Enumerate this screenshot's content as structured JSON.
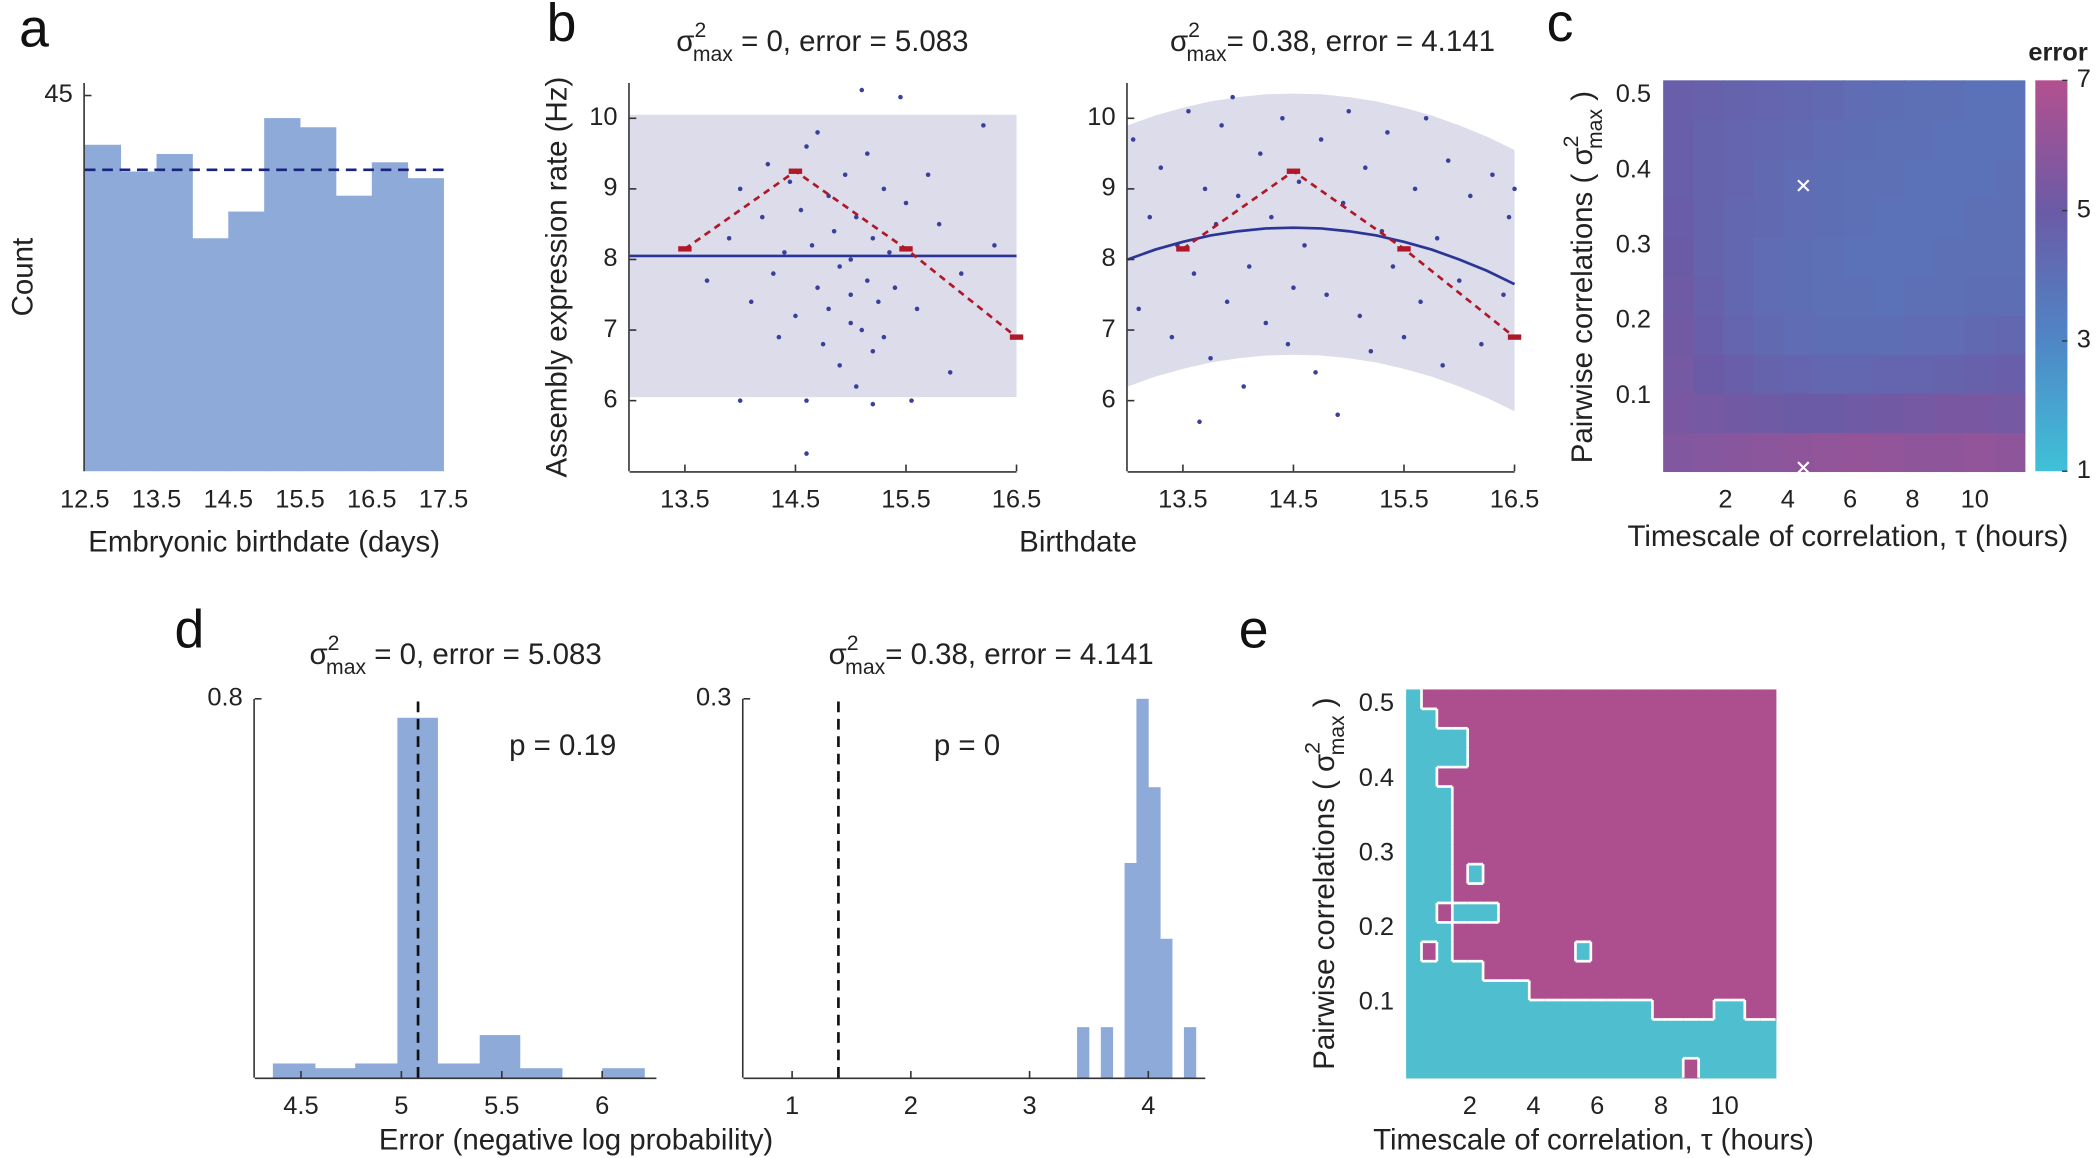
{
  "chart_data": [
    {
      "type": "histogram",
      "panel": "a",
      "ylabel": "Count",
      "xlabel": "Embryonic birthdate (days)",
      "bins": [
        12.5,
        13,
        13.5,
        14,
        14.5,
        15,
        15.5,
        16,
        16.5,
        17,
        17.5
      ],
      "values": [
        39.1,
        35.9,
        38.0,
        27.9,
        31.1,
        42.3,
        41.2,
        33.0,
        37.0,
        35.1
      ],
      "color": "#8eaad8",
      "mean_line": 36.1,
      "line_color": "#1a237e",
      "xlim": [
        12.5,
        17.5
      ],
      "ylim": [
        0,
        46.5
      ],
      "xticks": [
        12.5,
        13.5,
        14.5,
        15.5,
        16.5,
        17.5
      ],
      "yticks": [
        45
      ]
    },
    {
      "type": "scatter",
      "panel": "b",
      "title": [
        "σ",
        "2",
        "max",
        " = 0, error = 5.083"
      ],
      "ylabel": "Assembly expression rate (Hz)",
      "xlabel": "Birthdate",
      "x": [
        13.7,
        13.9,
        14.0,
        14.1,
        14.2,
        14.25,
        14.3,
        14.35,
        14.4,
        14.45,
        14.5,
        14.55,
        14.6,
        14.6,
        14.65,
        14.7,
        14.7,
        14.75,
        14.8,
        14.8,
        14.85,
        14.9,
        14.9,
        14.95,
        15.0,
        15.0,
        15.0,
        15.05,
        15.05,
        15.1,
        15.1,
        15.15,
        15.15,
        15.2,
        15.2,
        15.25,
        15.3,
        15.3,
        15.35,
        15.4,
        15.45,
        15.5,
        15.55,
        15.6,
        15.7,
        15.8,
        15.9,
        16.0,
        16.2,
        16.3,
        14.6,
        15.2,
        14.0
      ],
      "y": [
        7.7,
        8.3,
        9.0,
        7.4,
        8.6,
        9.35,
        7.8,
        6.9,
        8.1,
        9.1,
        7.2,
        8.7,
        9.6,
        6.0,
        8.2,
        7.6,
        9.8,
        6.8,
        8.9,
        7.3,
        8.4,
        6.5,
        7.9,
        9.2,
        7.1,
        8.0,
        7.5,
        6.2,
        8.6,
        10.4,
        7.0,
        9.5,
        7.7,
        6.7,
        8.3,
        7.4,
        9.0,
        6.9,
        8.1,
        7.6,
        10.3,
        8.8,
        6.0,
        7.3,
        9.2,
        8.5,
        6.4,
        7.8,
        9.9,
        8.2,
        5.25,
        5.95,
        6.0
      ],
      "point_color": "#3a3f9a",
      "fit": {
        "x": [
          13,
          16.5
        ],
        "y": [
          8.05,
          8.05
        ],
        "upper": [
          10.05,
          10.05
        ],
        "lower": [
          6.05,
          6.05
        ],
        "color": "#2b3595",
        "band_color": "#dcdcea"
      },
      "reference": {
        "x": [
          13.5,
          14.5,
          15.5,
          16.5
        ],
        "y": [
          8.15,
          9.25,
          8.15,
          6.9
        ],
        "color": "#b0182a"
      },
      "xlim": [
        13,
        16.5
      ],
      "ylim": [
        5,
        10.5
      ],
      "xticks": [
        13.5,
        14.5,
        15.5,
        16.5
      ],
      "yticks": [
        6,
        7,
        8,
        9,
        10
      ]
    },
    {
      "type": "scatter",
      "title": [
        "σ",
        "2",
        "max",
        "= 0.38, error = 4.141"
      ],
      "x": [
        13.05,
        13.1,
        13.2,
        13.3,
        13.4,
        13.45,
        13.55,
        13.6,
        13.65,
        13.7,
        13.75,
        13.8,
        13.85,
        13.9,
        13.95,
        14.0,
        14.05,
        14.1,
        14.2,
        14.25,
        14.3,
        14.4,
        14.45,
        14.5,
        14.55,
        14.6,
        14.7,
        14.75,
        14.8,
        14.9,
        14.95,
        15.0,
        15.1,
        15.15,
        15.2,
        15.3,
        15.35,
        15.4,
        15.5,
        15.6,
        15.65,
        15.7,
        15.8,
        15.85,
        15.9,
        16.0,
        16.1,
        16.2,
        16.3,
        16.4,
        16.45,
        16.5
      ],
      "y": [
        9.7,
        7.3,
        8.6,
        9.3,
        6.9,
        8.2,
        10.1,
        7.8,
        5.7,
        9.0,
        6.6,
        8.5,
        9.9,
        7.4,
        10.3,
        8.9,
        6.2,
        7.9,
        9.5,
        7.1,
        8.6,
        10.0,
        6.8,
        7.6,
        9.1,
        8.2,
        6.4,
        9.7,
        7.5,
        5.8,
        8.8,
        10.1,
        7.2,
        9.3,
        6.7,
        8.4,
        9.8,
        7.9,
        6.9,
        9.0,
        7.4,
        10.0,
        8.3,
        6.5,
        9.4,
        7.7,
        8.9,
        6.8,
        9.2,
        7.5,
        8.6,
        9.0
      ],
      "point_color": "#3a3f9a",
      "fit": {
        "x": [
          13,
          13.25,
          13.5,
          13.75,
          14,
          14.25,
          14.5,
          14.75,
          15,
          15.25,
          15.5,
          15.75,
          16,
          16.25,
          16.5
        ],
        "y": [
          8.0,
          8.14,
          8.25,
          8.34,
          8.4,
          8.44,
          8.45,
          8.44,
          8.4,
          8.34,
          8.25,
          8.14,
          8.0,
          7.84,
          7.65
        ],
        "upper": [
          9.9,
          10.04,
          10.15,
          10.24,
          10.3,
          10.34,
          10.35,
          10.34,
          10.3,
          10.24,
          10.15,
          10.04,
          9.9,
          9.74,
          9.55
        ],
        "lower": [
          6.2,
          6.34,
          6.45,
          6.54,
          6.6,
          6.64,
          6.65,
          6.64,
          6.6,
          6.54,
          6.45,
          6.34,
          6.2,
          6.04,
          5.85
        ],
        "color": "#2b3595",
        "band_color": "#dcdcea"
      },
      "reference": {
        "x": [
          13.5,
          14.5,
          15.5,
          16.5
        ],
        "y": [
          8.15,
          9.25,
          8.15,
          6.9
        ],
        "color": "#b0182a"
      },
      "xlim": [
        13,
        16.5
      ],
      "ylim": [
        5,
        10.5
      ],
      "xticks": [
        13.5,
        14.5,
        15.5,
        16.5
      ],
      "yticks": [
        6,
        7,
        8,
        9,
        10
      ]
    },
    {
      "type": "heatmap",
      "panel": "c",
      "ylabel": [
        "Pairwise correlations ( ",
        "σ",
        "2",
        "max",
        " )"
      ],
      "xlabel": "Timescale of correlation, τ  (hours)",
      "clabel": "error",
      "z": [
        [
          5.6,
          5.7,
          5.8,
          5.9,
          6.0,
          6.1,
          6.2,
          6.1,
          6.0,
          6.0,
          6.1,
          6.0
        ],
        [
          5.4,
          5.3,
          5.2,
          5.1,
          5.0,
          5.0,
          5.1,
          5.2,
          5.3,
          5.4,
          5.4,
          5.3
        ],
        [
          5.3,
          5.0,
          4.8,
          4.6,
          4.5,
          4.4,
          4.4,
          4.5,
          4.5,
          4.6,
          4.7,
          4.8
        ],
        [
          5.2,
          4.8,
          4.5,
          4.3,
          4.2,
          4.1,
          4.1,
          4.1,
          4.2,
          4.2,
          4.3,
          4.4
        ],
        [
          5.1,
          4.7,
          4.4,
          4.2,
          4.1,
          4.0,
          4.0,
          3.9,
          4.0,
          4.0,
          4.1,
          4.1
        ],
        [
          5.0,
          4.6,
          4.4,
          4.2,
          4.1,
          4.0,
          3.9,
          3.9,
          3.9,
          4.0,
          4.0,
          4.0
        ],
        [
          4.9,
          4.6,
          4.4,
          4.3,
          4.2,
          4.1,
          4.0,
          3.9,
          3.9,
          3.9,
          4.0,
          4.0
        ],
        [
          4.8,
          4.6,
          4.5,
          4.3,
          4.2,
          4.1,
          4.0,
          4.0,
          3.9,
          3.9,
          3.9,
          4.0
        ],
        [
          4.8,
          4.6,
          4.5,
          4.4,
          4.3,
          4.2,
          4.1,
          4.0,
          4.0,
          3.9,
          3.9,
          3.9
        ],
        [
          4.8,
          4.7,
          4.6,
          4.5,
          4.4,
          4.3,
          4.2,
          4.1,
          4.0,
          4.0,
          3.9,
          3.9
        ]
      ],
      "colormap": [
        "#3fc1d8",
        "#4f86c6",
        "#6b5aa6",
        "#b3508f"
      ],
      "clim": [
        1,
        7
      ],
      "cticks": [
        1,
        3,
        5,
        7
      ],
      "markers": {
        "x": [
          4.5,
          4.5
        ],
        "y": [
          0.38,
          0.005
        ],
        "color": "#ffffff"
      },
      "xlim": [
        0,
        11.6
      ],
      "ylim": [
        0,
        0.52
      ],
      "xticks": [
        2,
        4,
        6,
        8,
        10
      ],
      "yticks": [
        0.1,
        0.2,
        0.3,
        0.4,
        0.5
      ]
    },
    {
      "type": "histogram",
      "panel": "d",
      "title": [
        "σ",
        "2",
        "max",
        " = 0, error = 5.083"
      ],
      "xlabel": "Error (negative log probability)",
      "annotation": "p = 0.19",
      "bins": [
        4.36,
        4.57,
        4.77,
        4.98,
        5.18,
        5.39,
        5.59,
        5.8,
        6.0,
        6.21
      ],
      "values": [
        0.03,
        0.02,
        0.03,
        0.76,
        0.03,
        0.09,
        0.02,
        0,
        0.02
      ],
      "color": "#8eaad8",
      "vline": 5.083,
      "line_color": "#111111",
      "xlim": [
        4.27,
        6.27
      ],
      "ylim": [
        0,
        0.8
      ],
      "xticks": [
        4.5,
        5,
        5.5,
        6
      ],
      "yticks": [
        0.8
      ]
    },
    {
      "type": "histogram",
      "title": [
        "σ",
        "2",
        "max",
        "= 0.38, error = 4.141"
      ],
      "annotation": "p = 0",
      "bins": [
        3.4,
        3.5,
        3.6,
        3.7,
        3.8,
        3.9,
        4.0,
        4.1,
        4.2,
        4.3,
        4.4
      ],
      "values": [
        0.04,
        0,
        0.04,
        0,
        0.17,
        0.3,
        0.23,
        0.11,
        0,
        0.04
      ],
      "color": "#8eaad8",
      "vline": 1.39,
      "line_color": "#111111",
      "xlim": [
        0.59,
        4.48
      ],
      "ylim": [
        0,
        0.3
      ],
      "xticks": [
        1,
        2,
        3,
        4
      ],
      "yticks": [
        0.3
      ]
    },
    {
      "type": "heatmap",
      "panel": "e",
      "ylabel": [
        "Pairwise correlations ( ",
        "σ",
        "2",
        "max",
        " )"
      ],
      "xlabel": "Timescale of correlation, τ  (hours)",
      "z": [
        [
          0,
          0,
          0,
          0,
          0,
          0,
          0,
          0,
          0,
          0,
          0,
          0,
          0,
          0,
          0,
          0,
          0,
          0,
          1,
          0,
          0,
          0,
          0,
          0
        ],
        [
          0,
          0,
          0,
          0,
          0,
          0,
          0,
          0,
          0,
          0,
          0,
          0,
          0,
          0,
          0,
          0,
          0,
          0,
          0,
          0,
          0,
          0,
          0,
          0
        ],
        [
          0,
          0,
          0,
          0,
          0,
          0,
          0,
          0,
          0,
          0,
          0,
          0,
          0,
          0,
          0,
          0,
          0,
          0,
          0,
          0,
          0,
          0,
          0,
          0
        ],
        [
          0,
          0,
          0,
          0,
          0,
          0,
          0,
          0,
          0,
          0,
          0,
          0,
          0,
          0,
          0,
          0,
          1,
          1,
          1,
          1,
          0,
          0,
          1,
          1
        ],
        [
          0,
          0,
          0,
          0,
          0,
          0,
          0,
          0,
          1,
          1,
          1,
          1,
          1,
          1,
          1,
          1,
          1,
          1,
          1,
          1,
          1,
          1,
          1,
          1
        ],
        [
          0,
          0,
          0,
          0,
          0,
          1,
          1,
          1,
          1,
          1,
          1,
          1,
          1,
          1,
          1,
          1,
          1,
          1,
          1,
          1,
          1,
          1,
          1,
          1
        ],
        [
          0,
          1,
          0,
          1,
          1,
          1,
          1,
          1,
          1,
          1,
          1,
          0,
          1,
          1,
          1,
          1,
          1,
          1,
          1,
          1,
          1,
          1,
          1,
          1
        ],
        [
          0,
          0,
          0,
          1,
          1,
          1,
          1,
          1,
          1,
          1,
          1,
          1,
          1,
          1,
          1,
          1,
          1,
          1,
          1,
          1,
          1,
          1,
          1,
          1
        ],
        [
          0,
          0,
          1,
          0,
          0,
          0,
          1,
          1,
          1,
          1,
          1,
          1,
          1,
          1,
          1,
          1,
          1,
          1,
          1,
          1,
          1,
          1,
          1,
          1
        ],
        [
          0,
          0,
          0,
          1,
          1,
          1,
          1,
          1,
          1,
          1,
          1,
          1,
          1,
          1,
          1,
          1,
          1,
          1,
          1,
          1,
          1,
          1,
          1,
          1
        ],
        [
          0,
          0,
          0,
          1,
          0,
          1,
          1,
          1,
          1,
          1,
          1,
          1,
          1,
          1,
          1,
          1,
          1,
          1,
          1,
          1,
          1,
          1,
          1,
          1
        ],
        [
          0,
          0,
          0,
          1,
          1,
          1,
          1,
          1,
          1,
          1,
          1,
          1,
          1,
          1,
          1,
          1,
          1,
          1,
          1,
          1,
          1,
          1,
          1,
          1
        ],
        [
          0,
          0,
          0,
          1,
          1,
          1,
          1,
          1,
          1,
          1,
          1,
          1,
          1,
          1,
          1,
          1,
          1,
          1,
          1,
          1,
          1,
          1,
          1,
          1
        ],
        [
          0,
          0,
          0,
          1,
          1,
          1,
          1,
          1,
          1,
          1,
          1,
          1,
          1,
          1,
          1,
          1,
          1,
          1,
          1,
          1,
          1,
          1,
          1,
          1
        ],
        [
          0,
          0,
          0,
          1,
          1,
          1,
          1,
          1,
          1,
          1,
          1,
          1,
          1,
          1,
          1,
          1,
          1,
          1,
          1,
          1,
          1,
          1,
          1,
          1
        ],
        [
          0,
          0,
          1,
          1,
          1,
          1,
          1,
          1,
          1,
          1,
          1,
          1,
          1,
          1,
          1,
          1,
          1,
          1,
          1,
          1,
          1,
          1,
          1,
          1
        ],
        [
          0,
          0,
          0,
          0,
          1,
          1,
          1,
          1,
          1,
          1,
          1,
          1,
          1,
          1,
          1,
          1,
          1,
          1,
          1,
          1,
          1,
          1,
          1,
          1
        ],
        [
          0,
          0,
          0,
          0,
          1,
          1,
          1,
          1,
          1,
          1,
          1,
          1,
          1,
          1,
          1,
          1,
          1,
          1,
          1,
          1,
          1,
          1,
          1,
          1
        ],
        [
          0,
          0,
          1,
          1,
          1,
          1,
          1,
          1,
          1,
          1,
          1,
          1,
          1,
          1,
          1,
          1,
          1,
          1,
          1,
          1,
          1,
          1,
          1,
          1
        ],
        [
          0,
          1,
          1,
          1,
          1,
          1,
          1,
          1,
          1,
          1,
          1,
          1,
          1,
          1,
          1,
          1,
          1,
          1,
          1,
          1,
          1,
          1,
          1,
          1
        ]
      ],
      "colors": [
        "#4fbfcf",
        "#ad4e8f"
      ],
      "boundary_color": "#ffffff",
      "xlim": [
        0,
        11.6
      ],
      "ylim": [
        0,
        0.52
      ],
      "xticks": [
        2,
        4,
        6,
        8,
        10
      ],
      "yticks": [
        0.1,
        0.2,
        0.3,
        0.4,
        0.5
      ]
    }
  ]
}
